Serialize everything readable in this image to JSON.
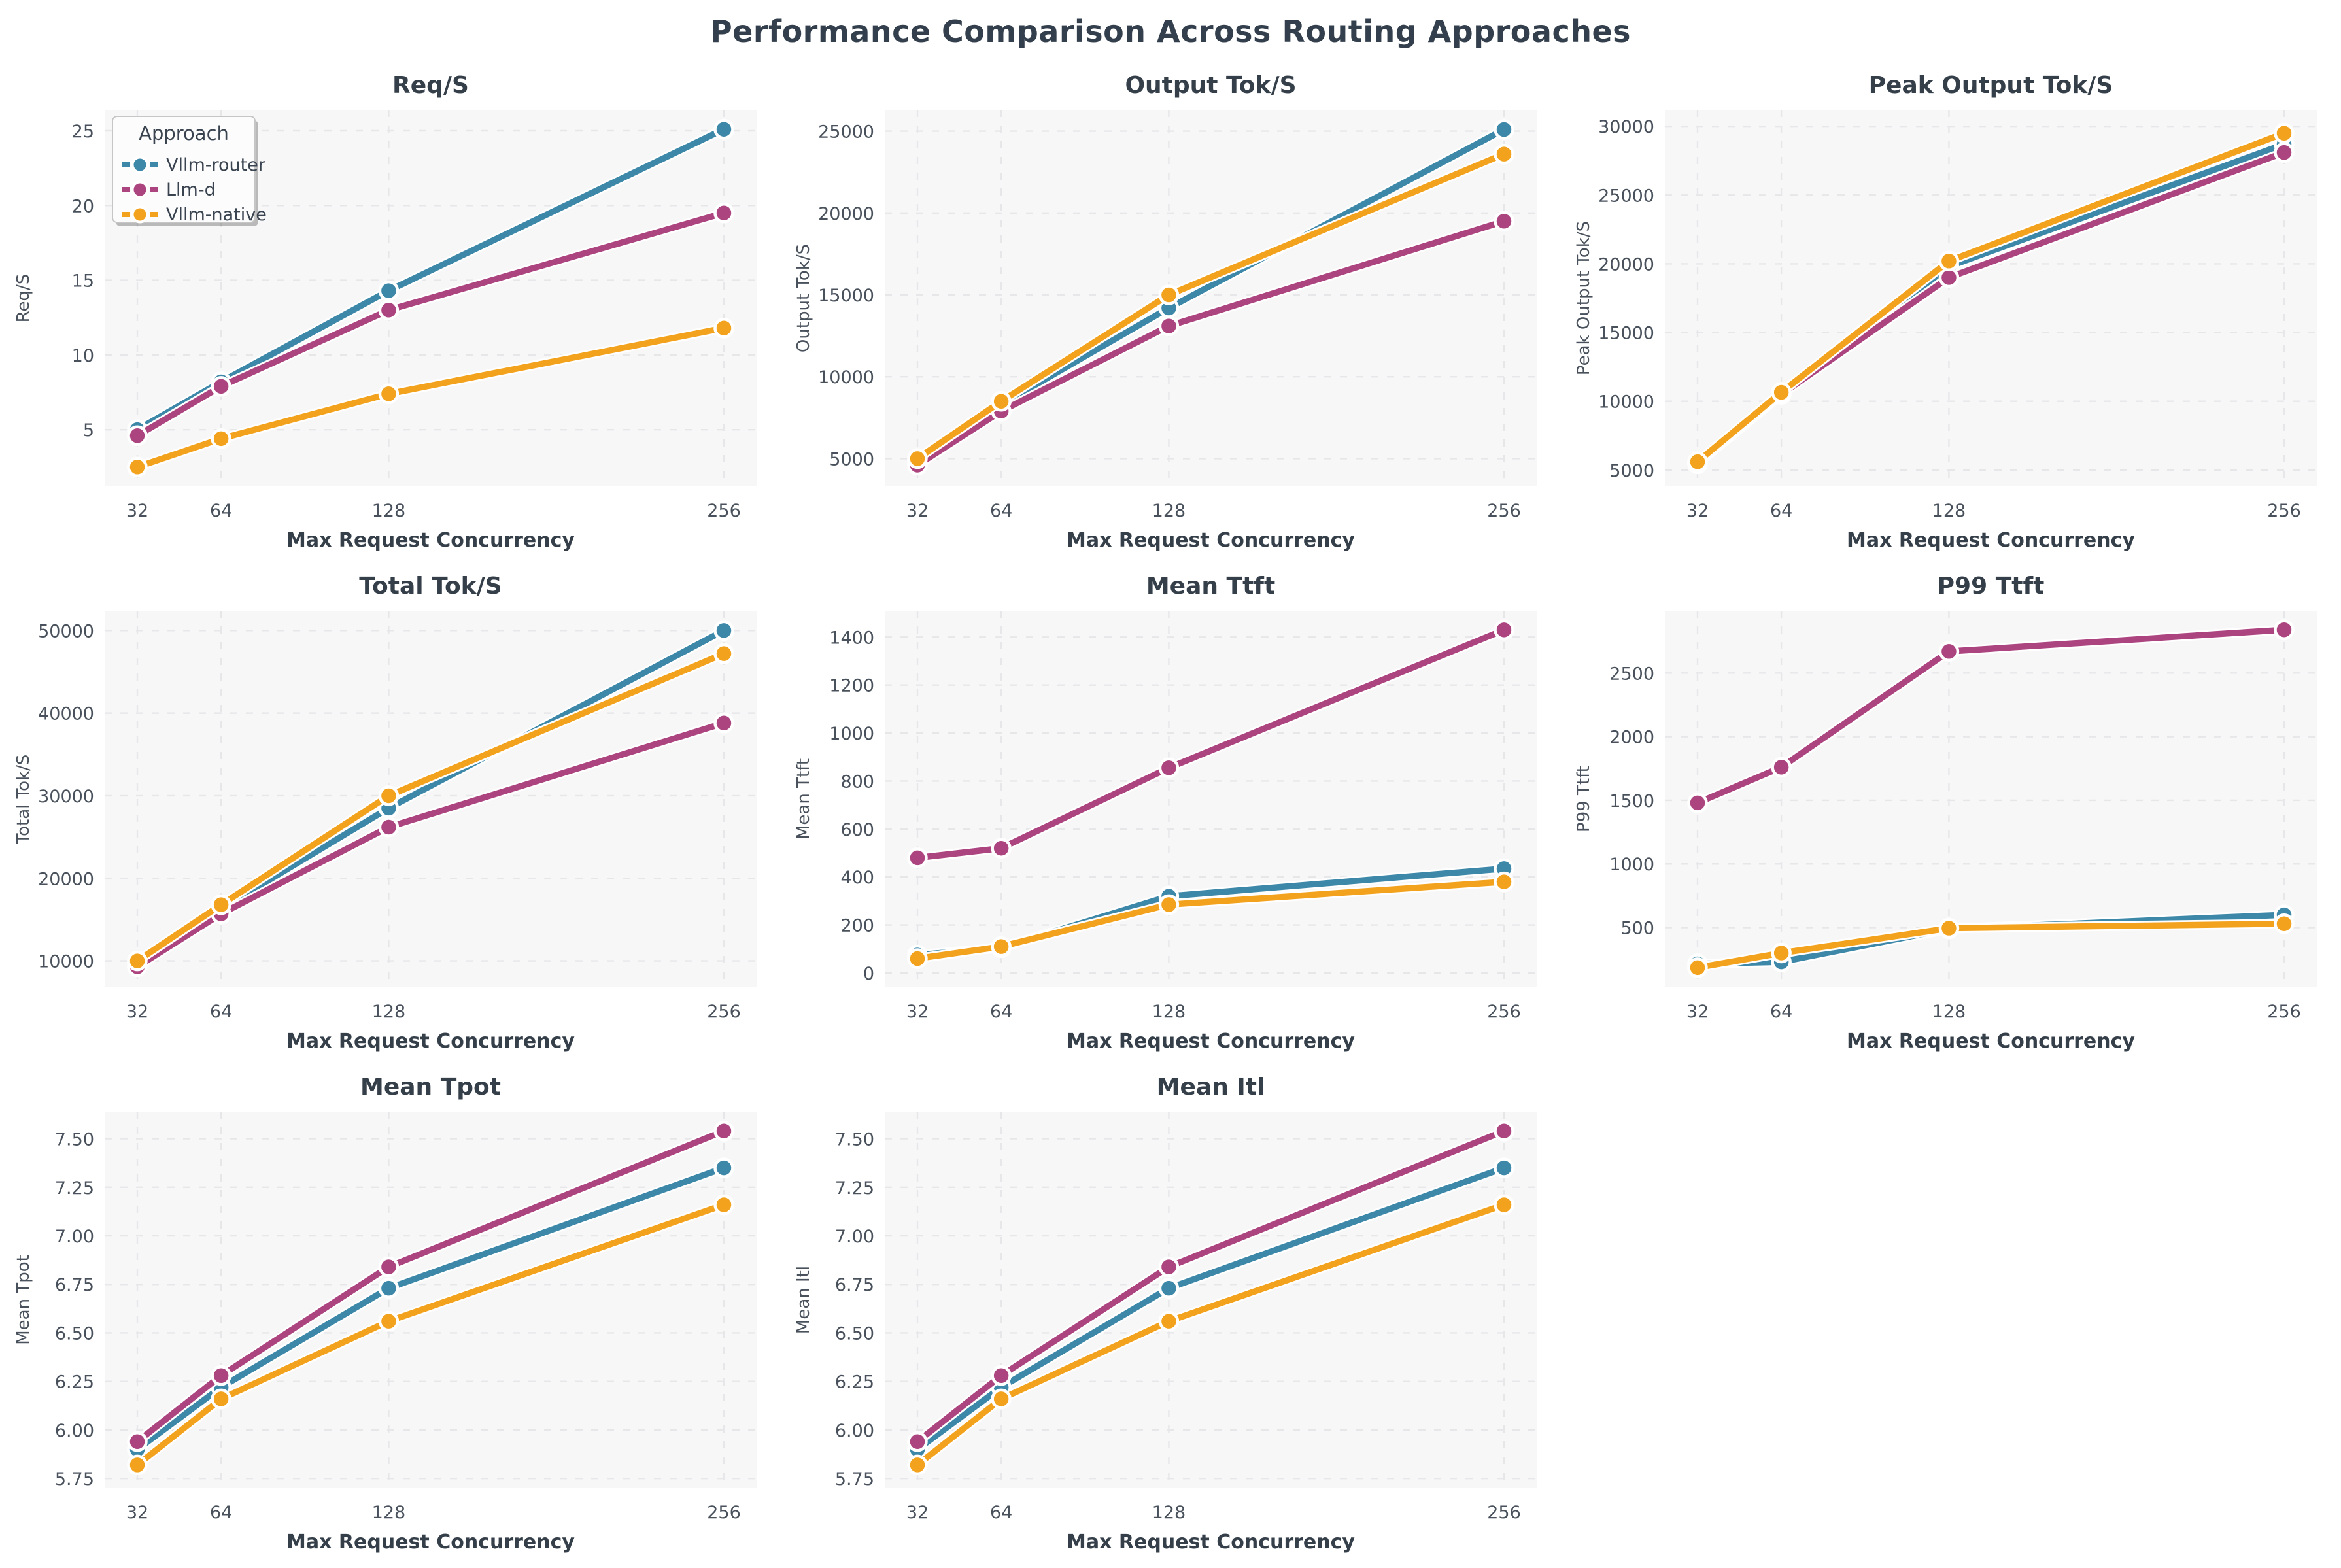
{
  "figure": {
    "title": "Performance Comparison Across Routing Approaches"
  },
  "legend": {
    "title": "Approach"
  },
  "approaches": [
    {
      "name": "Vllm-router",
      "color": "#3D88A8"
    },
    {
      "name": "Llm-d",
      "color": "#AC4480"
    },
    {
      "name": "Vllm-native",
      "color": "#F3A21D"
    }
  ],
  "x": {
    "label": "Max Request Concurrency",
    "values": [
      32,
      64,
      128,
      256
    ]
  },
  "style": {
    "panel_bg": "#f7f7f8",
    "grid_color": "#e7e7ea",
    "tick_color": "#49525c",
    "title_color": "#353f4a"
  },
  "chart_data": [
    {
      "type": "line",
      "title": "Req/S",
      "ylabel": "Req/S",
      "yticks": [
        5,
        10,
        15,
        20,
        25
      ],
      "ylim": [
        1.2,
        26.4
      ],
      "decimals": 0,
      "legend": true,
      "series": [
        {
          "name": "Vllm-router",
          "values": [
            5.0,
            8.2,
            14.3,
            25.1
          ]
        },
        {
          "name": "Llm-d",
          "values": [
            4.6,
            7.9,
            13.0,
            19.5
          ]
        },
        {
          "name": "Vllm-native",
          "values": [
            2.5,
            4.4,
            7.4,
            11.8
          ]
        }
      ]
    },
    {
      "type": "line",
      "title": "Output Tok/S",
      "ylabel": "Output Tok/S",
      "yticks": [
        5000,
        10000,
        15000,
        20000,
        25000
      ],
      "ylim": [
        3300,
        26300
      ],
      "decimals": 0,
      "legend": false,
      "series": [
        {
          "name": "Vllm-router",
          "values": [
            4900,
            8300,
            14200,
            25100
          ]
        },
        {
          "name": "Llm-d",
          "values": [
            4600,
            7900,
            13100,
            19500
          ]
        },
        {
          "name": "Vllm-native",
          "values": [
            5000,
            8500,
            15000,
            23600
          ]
        }
      ]
    },
    {
      "type": "line",
      "title": "Peak Output Tok/S",
      "ylabel": "Peak Output Tok/S",
      "yticks": [
        5000,
        10000,
        15000,
        20000,
        25000,
        30000
      ],
      "ylim": [
        3800,
        31200
      ],
      "decimals": 0,
      "legend": false,
      "series": [
        {
          "name": "Vllm-router",
          "values": [
            5500,
            10600,
            19800,
            28700
          ]
        },
        {
          "name": "Llm-d",
          "values": [
            5450,
            10500,
            19000,
            28100
          ]
        },
        {
          "name": "Vllm-native",
          "values": [
            5600,
            10650,
            20200,
            29500
          ]
        }
      ]
    },
    {
      "type": "line",
      "title": "Total Tok/S",
      "ylabel": "Total Tok/S",
      "yticks": [
        10000,
        20000,
        30000,
        40000,
        50000
      ],
      "ylim": [
        6800,
        52400
      ],
      "decimals": 0,
      "legend": false,
      "series": [
        {
          "name": "Vllm-router",
          "values": [
            9900,
            16300,
            28500,
            50000
          ]
        },
        {
          "name": "Llm-d",
          "values": [
            9300,
            15700,
            26200,
            38800
          ]
        },
        {
          "name": "Vllm-native",
          "values": [
            10000,
            16800,
            30000,
            47200
          ]
        }
      ]
    },
    {
      "type": "line",
      "title": "Mean Ttft",
      "ylabel": "Mean Ttft",
      "yticks": [
        0,
        200,
        400,
        600,
        800,
        1000,
        1200,
        1400
      ],
      "ylim": [
        -60,
        1510
      ],
      "decimals": 0,
      "legend": false,
      "series": [
        {
          "name": "Vllm-router",
          "values": [
            75,
            105,
            320,
            435
          ]
        },
        {
          "name": "Llm-d",
          "values": [
            480,
            520,
            855,
            1430
          ]
        },
        {
          "name": "Vllm-native",
          "values": [
            60,
            110,
            285,
            380
          ]
        }
      ]
    },
    {
      "type": "line",
      "title": "P99 Ttft",
      "ylabel": "P99 Ttft",
      "yticks": [
        500,
        1000,
        1500,
        2000,
        2500
      ],
      "ylim": [
        30,
        2990
      ],
      "decimals": 0,
      "legend": false,
      "series": [
        {
          "name": "Vllm-router",
          "values": [
            215,
            230,
            490,
            600
          ]
        },
        {
          "name": "Llm-d",
          "values": [
            1480,
            1760,
            2670,
            2840
          ]
        },
        {
          "name": "Vllm-native",
          "values": [
            185,
            300,
            495,
            530
          ]
        }
      ]
    },
    {
      "type": "line",
      "title": "Mean Tpot",
      "ylabel": "Mean Tpot",
      "yticks": [
        5.75,
        6.0,
        6.25,
        6.5,
        6.75,
        7.0,
        7.25,
        7.5
      ],
      "ylim": [
        5.7,
        7.64
      ],
      "decimals": 2,
      "legend": false,
      "series": [
        {
          "name": "Vllm-router",
          "values": [
            5.9,
            6.22,
            6.73,
            7.35
          ]
        },
        {
          "name": "Llm-d",
          "values": [
            5.94,
            6.28,
            6.84,
            7.54
          ]
        },
        {
          "name": "Vllm-native",
          "values": [
            5.82,
            6.16,
            6.56,
            7.16
          ]
        }
      ]
    },
    {
      "type": "line",
      "title": "Mean Itl",
      "ylabel": "Mean Itl",
      "yticks": [
        5.75,
        6.0,
        6.25,
        6.5,
        6.75,
        7.0,
        7.25,
        7.5
      ],
      "ylim": [
        5.7,
        7.64
      ],
      "decimals": 2,
      "legend": false,
      "series": [
        {
          "name": "Vllm-router",
          "values": [
            5.9,
            6.22,
            6.73,
            7.35
          ]
        },
        {
          "name": "Llm-d",
          "values": [
            5.94,
            6.28,
            6.84,
            7.54
          ]
        },
        {
          "name": "Vllm-native",
          "values": [
            5.82,
            6.16,
            6.56,
            7.16
          ]
        }
      ]
    }
  ]
}
